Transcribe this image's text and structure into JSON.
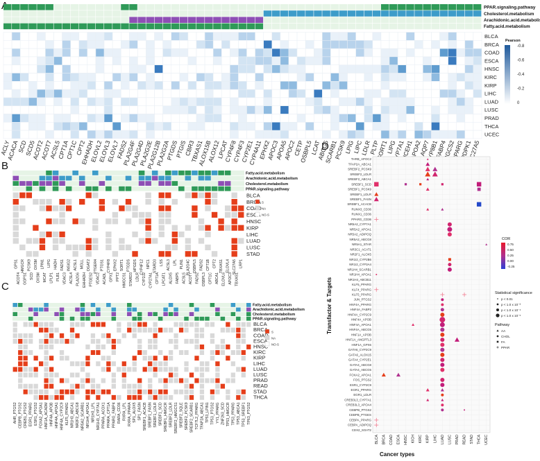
{
  "panel_letters": {
    "a": "A",
    "b": "B",
    "c": "C",
    "d": "D"
  },
  "colors": {
    "fa": "#2f9a58",
    "chol": "#3d9cc9",
    "aa": "#8e4fb5",
    "ppar": "#2f9a58",
    "track_empty": "#e6f4e6",
    "grid": "#e8eef4",
    "sig": "#e53e1a",
    "na": "#d9d9d9",
    "nosig": "#ffffff"
  },
  "panelA": {
    "tracks": [
      "PPAR.signaling.pathway",
      "Cholesterol.metabolism",
      "Arachidonic.acid.metabolism",
      "Fatty.acid.metabolism"
    ],
    "genes": [
      "ACLY",
      "ACACA",
      "SCD",
      "SCD5",
      "ACOT2",
      "ACOT7",
      "ACSL5",
      "CPT1A",
      "CPT1C",
      "CPT2",
      "EHHADH",
      "ELOVL2",
      "ELOVL3",
      "ELOVL7",
      "FADS2",
      "PLA2G4F",
      "PLA2G4D",
      "PLA2G2E",
      "PLA2G12B",
      "PLA2G2A",
      "PTGDS",
      "PTGIS",
      "CBR3",
      "TBXAS1",
      "ALOX15B",
      "ALOX12",
      "LPCAT",
      "CYP4F8",
      "CYP4F3",
      "CYP2E1",
      "CYP4A11",
      "EPHX2",
      "APOC3",
      "APOA5",
      "APOC2",
      "CETP",
      "OSBPL5",
      "LCAT",
      "ABCG5",
      "SCARB1",
      "PCSK9",
      "LPIG",
      "LIPC",
      "LDLR",
      "PLTP",
      "SORT1",
      "LIPG",
      "CYP7A1",
      "NCEH1",
      "APOA2",
      "AQP7",
      "CYP8B1",
      "FABP4",
      "HMGCS2",
      "PPARG",
      "PDPK1",
      "SLC27A5"
    ],
    "cancers": [
      "BLCA",
      "BRCA",
      "COAD",
      "ESCA",
      "HNSC",
      "KIRC",
      "KIRP",
      "LIHC",
      "LUAD",
      "LUSC",
      "PRAD",
      "THCA",
      "UCEC"
    ],
    "legend_title": "Pearson",
    "legend_ticks": [
      "-0.8",
      "-0.6",
      "-0.4",
      "-0.2",
      "0"
    ]
  },
  "panelB": {
    "tracks": [
      "Fatty.acid.metabolism",
      "Arachidonic.acid.metabolism",
      "Cholesterol.metabolism",
      "PPAR.signaling.pathway"
    ],
    "cancers": [
      "BLCA",
      "BRCA",
      "COAD",
      "ESCA",
      "HNSC",
      "KIRP",
      "LIHC",
      "LUAD",
      "LUSC",
      "STAD"
    ],
    "genes_top": [
      "GPS1",
      "HMGCR",
      "PCSK9",
      "OXSM",
      "LPIN1",
      "LIPG",
      "HADH",
      "FADS1",
      "INSIG2",
      "ACSL1",
      "MGLL",
      "DGAT2",
      "PTGER4",
      "PTGS1",
      "CYP4F8",
      "EPHX2",
      "SORT1",
      "PTGDS",
      "HPGDS",
      "CYP4F12",
      "NPC1",
      "STARD3",
      "LSS",
      "ACSL3",
      "LPL",
      "PLIN1",
      "PLA2G4C",
      "OSBPL5",
      "FADS2",
      "CPT1B",
      "CPT2",
      "TBXAS1",
      "ELOVL4",
      "SLC27A5",
      "LRP1"
    ],
    "genes_bottom": [
      "ACOT4",
      "GGPS1",
      "SCD",
      "OXSM",
      "MCAT",
      "LPLP1",
      "PLB1",
      "VDAC3",
      "ACSL4",
      "PLA2G6",
      "EHHADH",
      "PTGES2",
      "VDAC2",
      "ACADL",
      "GPX1",
      "PPT2",
      "HMGCS1",
      "STARD3",
      "LDLR",
      "CYP2J2",
      "CYP27A1",
      "CPT1A",
      "LPCAT1",
      "ALOX5",
      "FABP5",
      "ACSL5",
      "ACOT7",
      "FADS2",
      "OSBPL3",
      "CPT1C",
      "ABCA1",
      "ELOVL6",
      "APOC3",
      "TBXAS1"
    ],
    "legend": {
      "sig": "S",
      "na": "NA",
      "nosig": "NO-S"
    }
  },
  "panelC": {
    "tracks": [
      "Fatty.acid.metabolism",
      "Arachidonic.acid.metabolism",
      "Cholesterol.metabolism",
      "PPAR.signaling.pathway"
    ],
    "cancers": [
      "BLCA",
      "BRCA",
      "COAD",
      "ESCA",
      "HNSC",
      "KIRC",
      "KIRP",
      "LIHC",
      "LUAD",
      "LUSC",
      "PRAD",
      "READ",
      "STAD",
      "THCA"
    ],
    "pairs": [
      "AHR_PTGS2",
      "CEBPB_PTGS2",
      "CREB1_PTGS2",
      "EGR1_PPARG",
      "ESR1_PTGS2",
      "FOXA2_APOA1",
      "HNF1A_ACADM",
      "HNF4A_APOB",
      "HNF4A_APOA1",
      "HNF4A_CYP2C9",
      "KLF5_PPARG",
      "NR1H3_ABCA1",
      "NR2F2_ABCG8",
      "NR5A2_SCARB1",
      "NR1H4_APOA1",
      "NR1H3_LPL",
      "NR1H3_CYP7A1",
      "PPARA_ACOX1",
      "PPARA_CPT1A",
      "PPARG_FABP4",
      "RARA_CD36",
      "RXRA_LPL",
      "RXRA_PPARA",
      "SP1_ALOX5",
      "SP1_FASN",
      "SREBF1_ACACB",
      "SREBF1_FASN",
      "SREBF1_LDLR",
      "SREBF1_SCD",
      "SREBF1_HMGCR",
      "SREBF2_LDLR",
      "SREBF2_HMGCS1",
      "SREBF2_SQLE",
      "SREBF2_PCSK9",
      "SREBF2_SCARB1",
      "TCF7L2_PPARG",
      "TFAP2A_ABCA1",
      "TP53_LPIN1",
      "TP53_PTGS2",
      "YY1_PPARG",
      "ZNF263_SCD",
      "TP53_HMGCR",
      "TP53_PPARG",
      "TP53_ABCA1",
      "TP53_SREBF1",
      "TP63_PTGS2"
    ],
    "legend": {
      "sig": "S",
      "na": "NA",
      "nosig": "NO-S"
    }
  },
  "panelD": {
    "y_title": "Transfactor & Targets",
    "x_title": "Cancer types",
    "cancers": [
      "BLCA",
      "BRCA",
      "COAD",
      "ESCA",
      "HNSC",
      "KICH",
      "KIRC",
      "KIRP",
      "LIHC",
      "LUAD",
      "LUSC",
      "PRAD",
      "READ",
      "STAD",
      "THCA",
      "UCEC"
    ],
    "pairs": [
      "THRB_APOC2",
      "TFAP2A_ABCA1",
      "SREBF2_PCSK9",
      "SREBF2_LDLR",
      "SREBF2_ABCA1",
      "SREBF1_SCD",
      "SREBF1_PCSK9",
      "SREBF1_LDLR",
      "SREBF1_FASN",
      "SREBF1_ACACB",
      "RUNX3_CD36",
      "RUNX1_CD36",
      "PPARG_CD36",
      "NR5A2_CYP7A1",
      "NR5A2_APOA1",
      "NR5A2_ADIPOQ",
      "NR5A2_ABCG8",
      "NR5A1_STAR",
      "NR3C1_ACAT1",
      "NR2F1_ALOX5",
      "NR1I2_CYP2B6",
      "NR1I2_CYP3A4",
      "NR1H4_SCARB1",
      "NR1H4_APOA1",
      "NR1H4_ABCB11",
      "KLF5_PPARG",
      "KLF4_PPARG",
      "KLF5_PPARG",
      "JUN_PTGS2",
      "HNF4A_PPARG",
      "HNF4A_FABP2",
      "HNF4A_CYP2C9",
      "HNF4A_APOB",
      "HNF4A_APOA1",
      "HNF4A_ABCG5",
      "HNF1A_APOB",
      "HNF1A_ANGPTL3",
      "HNF1A_GPX6",
      "GATA6_CYP2C9",
      "GATA6_ALOX15",
      "GATA4_CYP2E1",
      "GATA4_ABCG8",
      "GATA4_ABCG5",
      "FOXA2_APOA1",
      "FOS_PTGS2",
      "ESR1_CYP2C9",
      "EGR1_PPARG",
      "EGR1_LDLR",
      "CREB3L3_CYP7A1",
      "CREB3L3_APOA4",
      "CEBPB_PTGS2",
      "CEBPB_PTGES",
      "CEBPA_PPARG",
      "CEBPA_ADIPOQ",
      "CDX2_SOAT2"
    ],
    "cor_title": "COR",
    "cor_ticks": [
      "0.75",
      "0.50",
      "0.25",
      "0.00",
      "-0.25"
    ],
    "sig_title": "Statistical significance",
    "sig_items": [
      "p < 0.01",
      "p < 1.0 x 10⁻³",
      "p < 1.0 x 10⁻⁴",
      "p < 1.0 x 10⁻⁵"
    ],
    "pathway_title": "Pathway",
    "pathway_items": [
      "AA",
      "CHOL",
      "FA",
      "PPAR"
    ]
  }
}
